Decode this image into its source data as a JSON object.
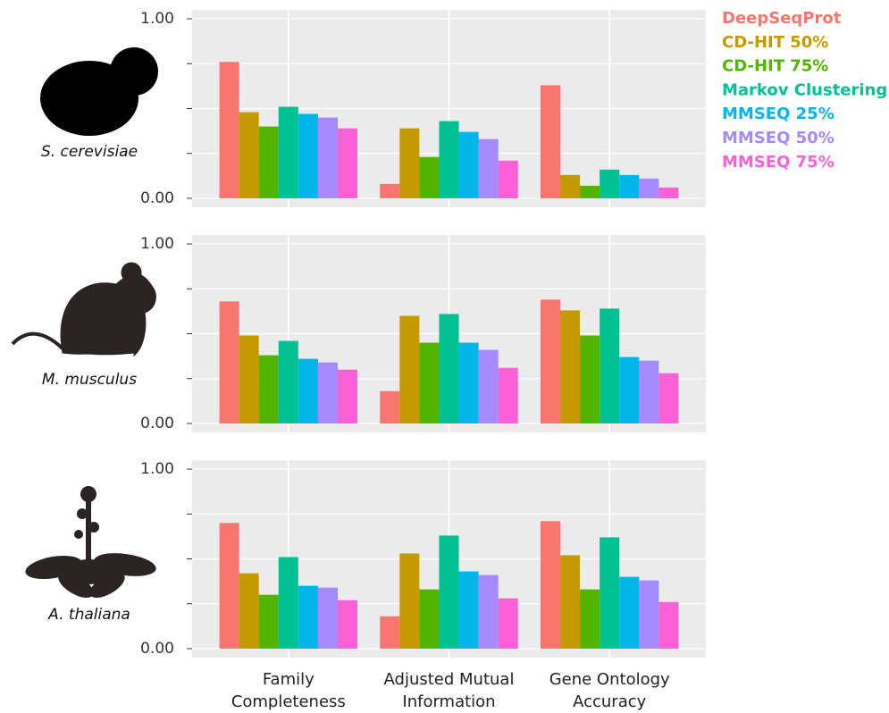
{
  "chart_data": [
    {
      "type": "bar",
      "label": "S. cerevisiae",
      "ylim": [
        -0.05,
        1.05
      ],
      "yticks": [
        {
          "value": 0,
          "label": "0.00"
        },
        {
          "value": 1,
          "label": "1.00"
        }
      ],
      "minor_yticks": [
        0.25,
        0.5,
        0.75
      ],
      "grid": true,
      "series": [
        {
          "name": "DeepSeqProt",
          "color": "#F8766D",
          "values": [
            0.76,
            0.08,
            0.63
          ]
        },
        {
          "name": "CD-HIT 50%",
          "color": "#C49A00",
          "values": [
            0.48,
            0.39,
            0.13
          ]
        },
        {
          "name": "CD-HIT 75%",
          "color": "#53B400",
          "values": [
            0.4,
            0.23,
            0.07
          ]
        },
        {
          "name": "Markov Clustering",
          "color": "#00C094",
          "values": [
            0.51,
            0.43,
            0.16
          ]
        },
        {
          "name": "MMSEQ 25%",
          "color": "#00B6EB",
          "values": [
            0.47,
            0.37,
            0.13
          ]
        },
        {
          "name": "MMSEQ 50%",
          "color": "#A58AFF",
          "values": [
            0.45,
            0.33,
            0.11
          ]
        },
        {
          "name": "MMSEQ 75%",
          "color": "#FB61D7",
          "values": [
            0.39,
            0.21,
            0.06
          ]
        }
      ]
    },
    {
      "type": "bar",
      "label": "M. musculus",
      "ylim": [
        -0.05,
        1.05
      ],
      "yticks": [
        {
          "value": 0,
          "label": "0.00"
        },
        {
          "value": 1,
          "label": "1.00"
        }
      ],
      "minor_yticks": [
        0.25,
        0.5,
        0.75
      ],
      "grid": true,
      "series": [
        {
          "color": "#F8766D",
          "values": [
            0.68,
            0.18,
            0.69
          ]
        },
        {
          "color": "#C49A00",
          "values": [
            0.49,
            0.6,
            0.63
          ]
        },
        {
          "color": "#53B400",
          "values": [
            0.38,
            0.45,
            0.49
          ]
        },
        {
          "color": "#00C094",
          "values": [
            0.46,
            0.61,
            0.64
          ]
        },
        {
          "color": "#00B6EB",
          "values": [
            0.36,
            0.45,
            0.37
          ]
        },
        {
          "color": "#A58AFF",
          "values": [
            0.34,
            0.41,
            0.35
          ]
        },
        {
          "color": "#FB61D7",
          "values": [
            0.3,
            0.31,
            0.28
          ]
        }
      ]
    },
    {
      "type": "bar",
      "label": "A. thaliana",
      "ylim": [
        -0.05,
        1.05
      ],
      "yticks": [
        {
          "value": 0,
          "label": "0.00"
        },
        {
          "value": 1,
          "label": "1.00"
        }
      ],
      "minor_yticks": [
        0.25,
        0.5,
        0.75
      ],
      "grid": true,
      "categories": [
        "Family\nCompleteness",
        "Adjusted Mutual\nInformation",
        "Gene Ontology\nAccuracy"
      ],
      "series": [
        {
          "color": "#F8766D",
          "values": [
            0.7,
            0.18,
            0.71
          ]
        },
        {
          "color": "#C49A00",
          "values": [
            0.42,
            0.53,
            0.52
          ]
        },
        {
          "color": "#53B400",
          "values": [
            0.3,
            0.33,
            0.33
          ]
        },
        {
          "color": "#00C094",
          "values": [
            0.51,
            0.63,
            0.62
          ]
        },
        {
          "color": "#00B6EB",
          "values": [
            0.35,
            0.43,
            0.4
          ]
        },
        {
          "color": "#A58AFF",
          "values": [
            0.34,
            0.41,
            0.38
          ]
        },
        {
          "color": "#FB61D7",
          "values": [
            0.27,
            0.28,
            0.26
          ]
        }
      ]
    }
  ]
}
